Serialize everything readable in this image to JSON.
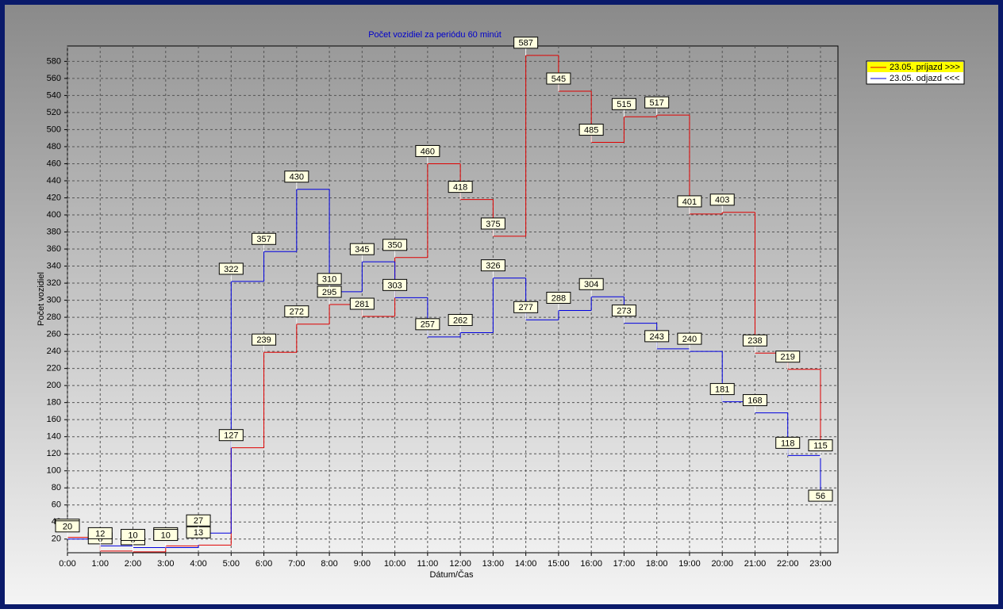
{
  "chart_data": {
    "type": "step",
    "title": "Počet vozidiel za periódu 60 minút",
    "xlabel": "Dátum/Čas",
    "ylabel": "Počet vozidiel",
    "categories": [
      "0:00",
      "1:00",
      "2:00",
      "3:00",
      "4:00",
      "5:00",
      "6:00",
      "7:00",
      "8:00",
      "9:00",
      "10:00",
      "11:00",
      "12:00",
      "13:00",
      "14:00",
      "15:00",
      "16:00",
      "17:00",
      "18:00",
      "19:00",
      "20:00",
      "21:00",
      "22:00",
      "23:00"
    ],
    "series": [
      {
        "name": "23.05.  príjazd >>>",
        "color": "#e00000",
        "values": [
          22,
          6,
          5,
          12,
          13,
          127,
          239,
          272,
          295,
          281,
          350,
          460,
          418,
          375,
          587,
          545,
          485,
          515,
          517,
          401,
          403,
          238,
          219,
          115
        ]
      },
      {
        "name": "23.05.  odjazd <<<",
        "color": "#0000e0",
        "values": [
          20,
          12,
          10,
          10,
          27,
          322,
          357,
          430,
          310,
          345,
          303,
          257,
          262,
          326,
          277,
          288,
          304,
          273,
          243,
          240,
          181,
          168,
          118,
          56
        ]
      }
    ],
    "ylim": [
      4,
      598
    ],
    "yticks": [
      20,
      40,
      60,
      80,
      100,
      120,
      140,
      160,
      180,
      200,
      220,
      240,
      260,
      280,
      300,
      320,
      340,
      360,
      380,
      400,
      420,
      440,
      460,
      480,
      500,
      520,
      540,
      560,
      580
    ],
    "grid": true,
    "legend": "right"
  }
}
